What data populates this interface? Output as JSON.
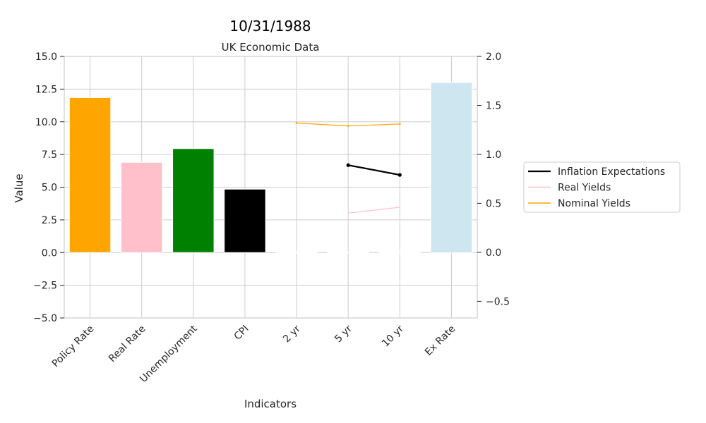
{
  "chart_data": {
    "type": "bar",
    "suptitle": "10/31/1988",
    "title": "UK Economic Data",
    "xlabel": "Indicators",
    "ylabel": "Value",
    "categories": [
      "Policy Rate",
      "Real Rate",
      "Unemployment",
      "CPI",
      "2 yr",
      "5 yr",
      "10 yr",
      "Ex Rate"
    ],
    "bars": {
      "values": [
        11.85,
        6.9,
        7.95,
        4.85,
        0,
        0,
        0,
        13.0
      ],
      "colors": [
        "#FFA500",
        "#FFC0CB",
        "#008000",
        "#000000",
        "#FFC0CB",
        "#FFC0CB",
        "#FFC0CB",
        "#CDE6EF"
      ]
    },
    "ylim_left": [
      -5,
      15
    ],
    "yticks_left": [
      -5.0,
      -2.5,
      0.0,
      2.5,
      5.0,
      7.5,
      10.0,
      12.5,
      15.0
    ],
    "ylim_right": [
      -0.67,
      2.0
    ],
    "yticks_right": [
      -0.5,
      0.0,
      0.5,
      1.0,
      1.5,
      2.0
    ],
    "series": [
      {
        "name": "Inflation Expectations",
        "color": "#000000",
        "axis": "right",
        "width": 2.2,
        "markers": true,
        "x": [
          "5 yr",
          "10 yr"
        ],
        "values": [
          0.89,
          0.79
        ]
      },
      {
        "name": "Real Yields",
        "color": "#FFC0CB",
        "axis": "right",
        "width": 1.2,
        "markers": false,
        "x": [
          "5 yr",
          "10 yr"
        ],
        "values": [
          0.4,
          0.46
        ]
      },
      {
        "name": "Nominal Yields",
        "color": "#FFA500",
        "axis": "right",
        "width": 1.2,
        "markers": true,
        "x": [
          "2 yr",
          "5 yr",
          "10 yr"
        ],
        "values": [
          1.32,
          1.29,
          1.31
        ]
      }
    ],
    "grid": true,
    "legend_position": "outside-right"
  }
}
